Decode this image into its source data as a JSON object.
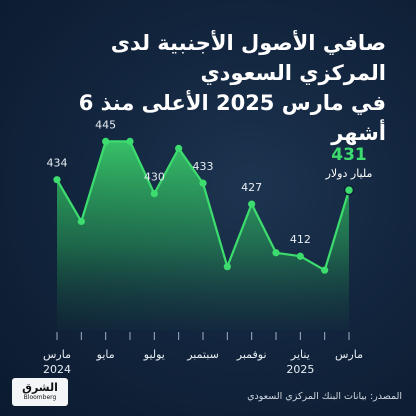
{
  "title_line1": "صافي الأصول الأجنبية لدى المركزي السعودي",
  "title_line2": "في مارس 2025 الأعلى منذ 6 أشهر",
  "source": "المصدر: بيانات البنك المركزي السعودي",
  "logo": {
    "arabic": "الشرق",
    "english": "Bloomberg"
  },
  "colors": {
    "accent": "#3ddc6e",
    "background": "#0e1f36",
    "text": "#ffffff"
  },
  "chart_data": {
    "type": "area",
    "x": [
      "2024-03",
      "2024-04",
      "2024-05",
      "2024-06",
      "2024-07",
      "2024-08",
      "2024-09",
      "2024-10",
      "2024-11",
      "2024-12",
      "2025-01",
      "2025-02",
      "2025-03"
    ],
    "values": [
      434,
      422,
      445,
      445,
      430,
      443,
      433,
      409,
      427,
      413,
      412,
      408,
      431
    ],
    "ylim": [
      400,
      450
    ],
    "tick_labels": [
      {
        "index": 0,
        "label": "مارس",
        "year": "2024"
      },
      {
        "index": 2,
        "label": "مايو",
        "year": ""
      },
      {
        "index": 4,
        "label": "يوليو",
        "year": ""
      },
      {
        "index": 6,
        "label": "سبتمبر",
        "year": ""
      },
      {
        "index": 8,
        "label": "نوفمبر",
        "year": ""
      },
      {
        "index": 10,
        "label": "يناير",
        "year": "2025"
      },
      {
        "index": 12,
        "label": "مارس",
        "year": ""
      }
    ],
    "point_labels": [
      {
        "index": 0,
        "text": "434"
      },
      {
        "index": 2,
        "text": "445"
      },
      {
        "index": 4,
        "text": "430"
      },
      {
        "index": 6,
        "text": "433"
      },
      {
        "index": 8,
        "text": "427"
      },
      {
        "index": 10,
        "text": "412"
      }
    ],
    "last_value_label": "431",
    "last_value_unit": "مليار دولار",
    "grid": false
  }
}
